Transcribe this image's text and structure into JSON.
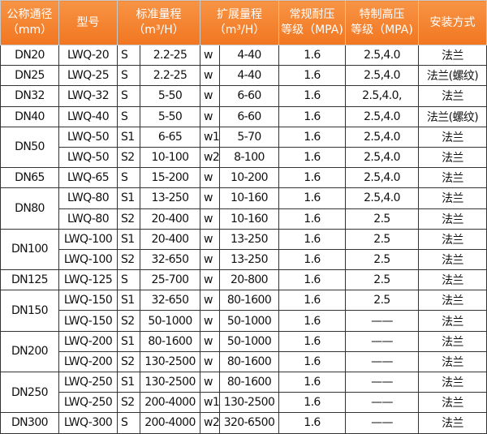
{
  "header": {
    "diameter": [
      "公称通径",
      "（mm）"
    ],
    "model": "型号",
    "standard_range": [
      "标准量程",
      "（m³/H）"
    ],
    "extended_range": [
      "扩展量程",
      "（m³/H）"
    ],
    "normal_pressure": [
      "常规耐压",
      "等级（MPA)"
    ],
    "special_pressure": [
      "特制高压",
      "等级（MPA)"
    ],
    "install": "安装方式"
  },
  "header_color": "#f47b20",
  "groups": [
    {
      "dn": "DN20",
      "rows": [
        [
          "LWQ-20",
          "S",
          "2.2-25",
          "w",
          "4-40",
          "1.6",
          "2.5,4.0",
          "法兰"
        ]
      ]
    },
    {
      "dn": "DN25",
      "rows": [
        [
          "LWQ-25",
          "S",
          "2.2-25",
          "w",
          "4-40",
          "1.6",
          "2.5,4.0",
          "法兰(螺纹)"
        ]
      ]
    },
    {
      "dn": "DN32",
      "rows": [
        [
          "LWQ-32",
          "S",
          "5-50",
          "w",
          "6-60",
          "1.6",
          "2.5,4.0,",
          "法兰"
        ]
      ]
    },
    {
      "dn": "DN40",
      "rows": [
        [
          "LWQ-40",
          "S",
          "5-50",
          "w",
          "6-60",
          "1.6",
          "2.5,4.0",
          "法兰(螺纹)"
        ]
      ]
    },
    {
      "dn": "DN50",
      "rows": [
        [
          "LWQ-50",
          "S1",
          "6-65",
          "w1",
          "5-70",
          "1.6",
          "2.5,4.0",
          "法兰"
        ],
        [
          "LWQ-50",
          "S2",
          "10-100",
          "w2",
          "8-100",
          "1.6",
          "2.5,4.0",
          "法兰"
        ]
      ]
    },
    {
      "dn": "DN65",
      "rows": [
        [
          "LWQ-65",
          "S",
          "15-200",
          "w",
          "10-200",
          "1.6",
          "2.5,4.0",
          "法兰"
        ]
      ]
    },
    {
      "dn": "DN80",
      "rows": [
        [
          "LWQ-80",
          "S1",
          "13-250",
          "w",
          "10-160",
          "1.6",
          "2.5,4.0",
          "法兰"
        ],
        [
          "LWQ-80",
          "S2",
          "20-400",
          "w",
          "10-160",
          "1.6",
          "2.5",
          "法兰"
        ]
      ]
    },
    {
      "dn": "DN100",
      "rows": [
        [
          "LWQ-100",
          "S1",
          "20-400",
          "w",
          "13-250",
          "1.6",
          "2.5",
          "法兰"
        ],
        [
          "LWQ-100",
          "S2",
          "32-650",
          "w",
          "13-250",
          "1.6",
          "2.5",
          "法兰"
        ]
      ]
    },
    {
      "dn": "DN125",
      "rows": [
        [
          "LWQ-125",
          "S",
          "25-700",
          "w",
          "20-800",
          "1.6",
          "2.5",
          "法兰"
        ]
      ]
    },
    {
      "dn": "DN150",
      "rows": [
        [
          "LWQ-150",
          "S1",
          "32-650",
          "w",
          "80-1600",
          "1.6",
          "2.5",
          "法兰"
        ],
        [
          "LWQ-150",
          "S2",
          "50-1000",
          "w",
          "50-1000",
          "1.6",
          "——",
          "法兰"
        ]
      ]
    },
    {
      "dn": "DN200",
      "rows": [
        [
          "LWQ-200",
          "S1",
          "80-1600",
          "w",
          "50-1000",
          "1.6",
          "——",
          "法兰"
        ],
        [
          "LWQ-200",
          "S2",
          "130-2500",
          "w",
          "80-1600",
          "1.6",
          "——",
          "法兰"
        ]
      ]
    },
    {
      "dn": "DN250",
      "rows": [
        [
          "LWQ-250",
          "S1",
          "130-2500",
          "w",
          "80-1600",
          "1.6",
          "——",
          "法兰"
        ],
        [
          "LWQ-250",
          "S2",
          "200-4000",
          "w1",
          "130-2500",
          "1.6",
          "——",
          "法兰"
        ]
      ]
    },
    {
      "dn": "DN300",
      "rows": [
        [
          "LWQ-300",
          "S",
          "200-4000",
          "w2",
          "320-6500",
          "1.6",
          "——",
          "法兰"
        ]
      ]
    }
  ]
}
